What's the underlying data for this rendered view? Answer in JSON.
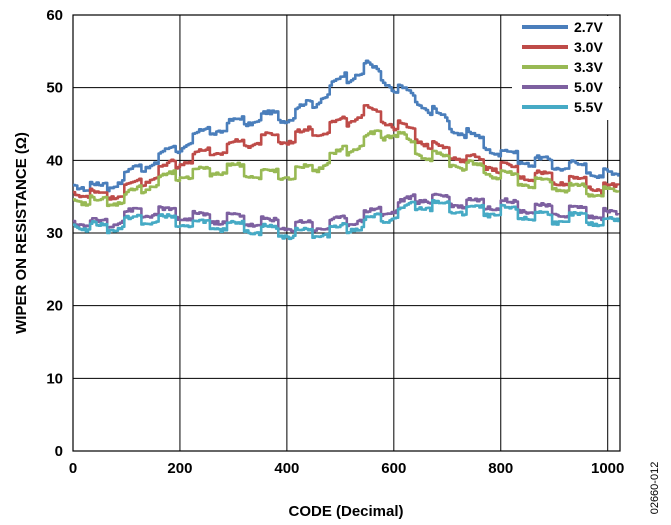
{
  "chart_data": {
    "type": "line",
    "xlabel": "CODE (Decimal)",
    "ylabel": "WIPER ON RESISTANCE (Ω)",
    "xlim": [
      0,
      1023
    ],
    "ylim": [
      0,
      60
    ],
    "xticks": [
      0,
      200,
      400,
      600,
      800,
      1000
    ],
    "yticks": [
      0,
      10,
      20,
      30,
      40,
      50,
      60
    ],
    "grid": true,
    "legend_position": "top-right",
    "x": [
      0,
      50,
      100,
      150,
      200,
      250,
      300,
      350,
      400,
      450,
      500,
      550,
      600,
      650,
      700,
      750,
      800,
      850,
      900,
      950,
      1000,
      1023
    ],
    "series": [
      {
        "name": "2.7V",
        "color": "#4a7ebb",
        "values": [
          37,
          36,
          38,
          40,
          42,
          44,
          45,
          46,
          46,
          48,
          51,
          53,
          50,
          48,
          45,
          43,
          41,
          40,
          39.5,
          39,
          38,
          37
        ]
      },
      {
        "name": "3.0V",
        "color": "#be4b48",
        "values": [
          36,
          35,
          36,
          38,
          40,
          41,
          42,
          43,
          43,
          44,
          45,
          47,
          45,
          43,
          41,
          40,
          39,
          38,
          37.5,
          37,
          36,
          36
        ]
      },
      {
        "name": "3.3V",
        "color": "#98b954",
        "values": [
          35,
          34,
          35,
          37,
          38,
          38.5,
          39,
          38,
          38,
          39,
          41,
          43,
          44,
          41,
          40,
          39,
          38,
          37,
          36.5,
          36,
          35.5,
          35
        ]
      },
      {
        "name": "5.0V",
        "color": "#7d60a0",
        "values": [
          32,
          31,
          32.5,
          33,
          32.5,
          32,
          32,
          31.5,
          31,
          31,
          31.5,
          32.5,
          33.5,
          35,
          34.5,
          34,
          34,
          33.5,
          33,
          33,
          32.5,
          32
        ]
      },
      {
        "name": "5.5V",
        "color": "#46aac5",
        "values": [
          31.5,
          30.5,
          31.5,
          32,
          31.5,
          31,
          31,
          30.5,
          30,
          30,
          30.5,
          31.5,
          32.5,
          34,
          33.5,
          33,
          33,
          32.5,
          32,
          32,
          31.5,
          31
        ]
      }
    ],
    "figure_id": "02660-012"
  }
}
